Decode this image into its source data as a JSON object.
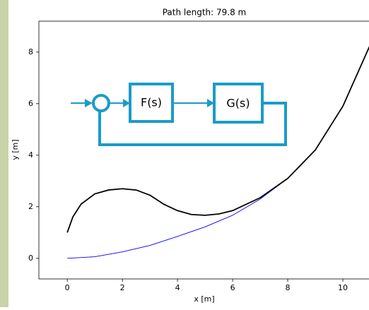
{
  "chart_data": {
    "type": "line",
    "title": "Path length: 79.8 m",
    "xlabel": "x [m]",
    "ylabel": "y [m]",
    "xlim": [
      -1.03,
      11.0
    ],
    "ylim": [
      -0.8,
      9.2
    ],
    "xticks": [
      0,
      2,
      4,
      6,
      8,
      10
    ],
    "yticks": [
      0,
      2,
      4,
      6,
      8
    ],
    "series": [
      {
        "color": "#0000ff",
        "x": [
          0,
          1,
          2,
          3,
          4,
          5,
          6,
          7,
          8,
          9,
          10,
          11
        ],
        "values": [
          0,
          0.06,
          0.25,
          0.5,
          0.85,
          1.22,
          1.67,
          2.3,
          3.1,
          4.2,
          5.9,
          8.3
        ]
      },
      {
        "color": "#000000",
        "x": [
          0,
          0.2,
          0.5,
          1,
          1.5,
          2,
          2.5,
          3,
          3.5,
          4,
          4.5,
          5,
          5.5,
          6,
          7,
          8,
          9,
          10,
          11
        ],
        "values": [
          1.0,
          1.6,
          2.1,
          2.5,
          2.65,
          2.7,
          2.65,
          2.45,
          2.1,
          1.85,
          1.7,
          1.67,
          1.72,
          1.85,
          2.35,
          3.1,
          4.2,
          5.9,
          8.3
        ]
      }
    ]
  },
  "diagram": {
    "blocks": [
      "F(s)",
      "G(s)"
    ]
  }
}
